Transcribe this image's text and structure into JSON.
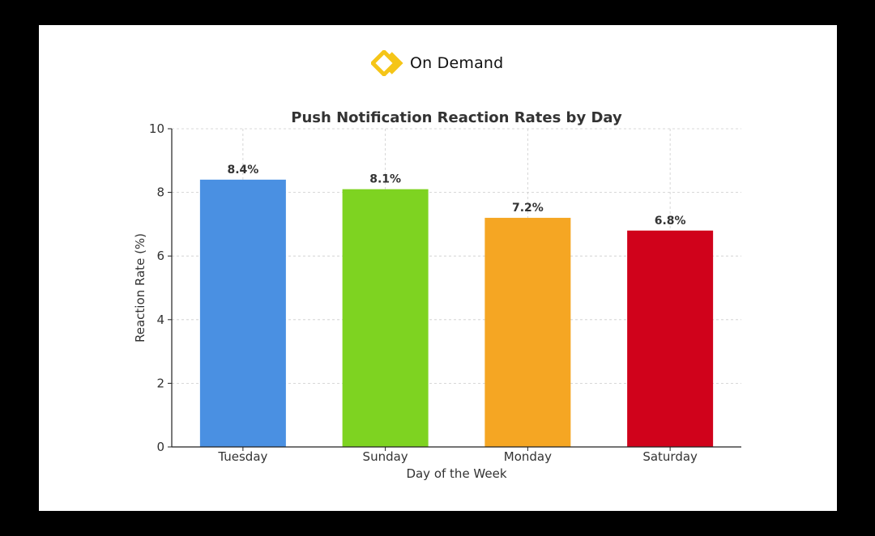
{
  "brand": {
    "name": "On Demand",
    "logo_icon": "double-chevron-diamond-icon",
    "logo_color": "#F5C518"
  },
  "colors": {
    "page_background": "#000000",
    "card_background": "#ffffff",
    "grid": "#cccccc",
    "axis": "#222222",
    "text": "#333333"
  },
  "chart_data": {
    "type": "bar",
    "title": "Push Notification Reaction Rates by Day",
    "xlabel": "Day of the Week",
    "ylabel": "Reaction Rate (%)",
    "ylim": [
      0,
      10
    ],
    "yticks": [
      0,
      2,
      4,
      6,
      8,
      10
    ],
    "grid": true,
    "categories": [
      "Tuesday",
      "Sunday",
      "Monday",
      "Saturday"
    ],
    "values": [
      8.4,
      8.1,
      7.2,
      6.8
    ],
    "value_labels": [
      "8.4%",
      "8.1%",
      "7.2%",
      "6.8%"
    ],
    "bar_colors": [
      "#4A90E2",
      "#7ED321",
      "#F5A623",
      "#D0021B"
    ]
  }
}
